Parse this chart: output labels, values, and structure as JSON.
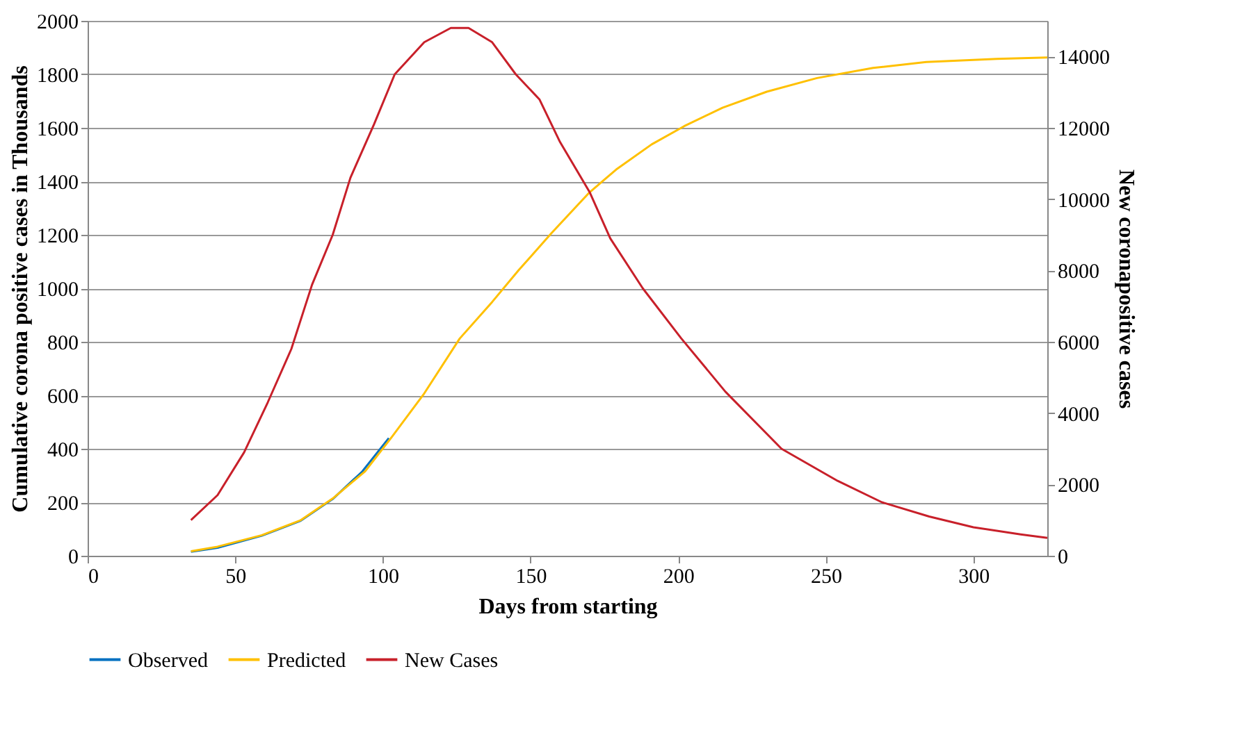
{
  "chart_data": {
    "type": "line",
    "xlabel": "Days from starting",
    "ylabel": "Cumulative corona positive cases in Thousands",
    "y2label": "New coronapositive cases",
    "xlim": [
      0,
      325
    ],
    "xticks": [
      0,
      50,
      100,
      150,
      200,
      250,
      300
    ],
    "ylim": [
      0,
      2000
    ],
    "yticks": [
      0,
      200,
      400,
      600,
      800,
      1000,
      1200,
      1400,
      1600,
      1800,
      2000
    ],
    "y2lim": [
      0,
      15000
    ],
    "y2ticks": [
      0,
      2000,
      4000,
      6000,
      8000,
      10000,
      12000,
      14000
    ],
    "grid": "y",
    "legend": "bottom",
    "line_style": "solid",
    "series": [
      {
        "name": "Observed",
        "color": "#0070c0",
        "x": [
          35,
          44,
          59,
          72,
          83,
          93,
          102
        ],
        "values": [
          15,
          30,
          75,
          130,
          212,
          315,
          440
        ]
      },
      {
        "name": "Predicted",
        "color": "#ffc000",
        "x": [
          35,
          44,
          59,
          72,
          83,
          94,
          103,
          114,
          126,
          137,
          146,
          157,
          165,
          170,
          179,
          191,
          202,
          215,
          230,
          247,
          266,
          284,
          308,
          325
        ],
        "values": [
          17,
          34,
          77,
          132,
          214,
          316,
          444,
          607,
          812,
          949,
          1068,
          1205,
          1300,
          1359,
          1444,
          1538,
          1606,
          1675,
          1735,
          1786,
          1824,
          1846,
          1858,
          1863
        ]
      },
      {
        "name": "New Cases",
        "color": "#c8202a",
        "axis": "y2",
        "x": [
          35,
          44,
          53,
          61,
          69,
          76,
          83,
          89,
          97,
          104,
          114,
          123,
          129,
          137,
          145,
          153,
          160,
          170,
          177,
          188,
          201,
          216,
          235,
          254,
          269,
          285,
          300,
          316,
          325
        ],
        "values": [
          1000,
          1700,
          2900,
          4300,
          5800,
          7600,
          9000,
          10600,
          12100,
          13500,
          14400,
          14800,
          14800,
          14400,
          13500,
          12800,
          11600,
          10200,
          8900,
          7500,
          6100,
          4600,
          3000,
          2100,
          1500,
          1100,
          800,
          600,
          500
        ]
      }
    ]
  }
}
